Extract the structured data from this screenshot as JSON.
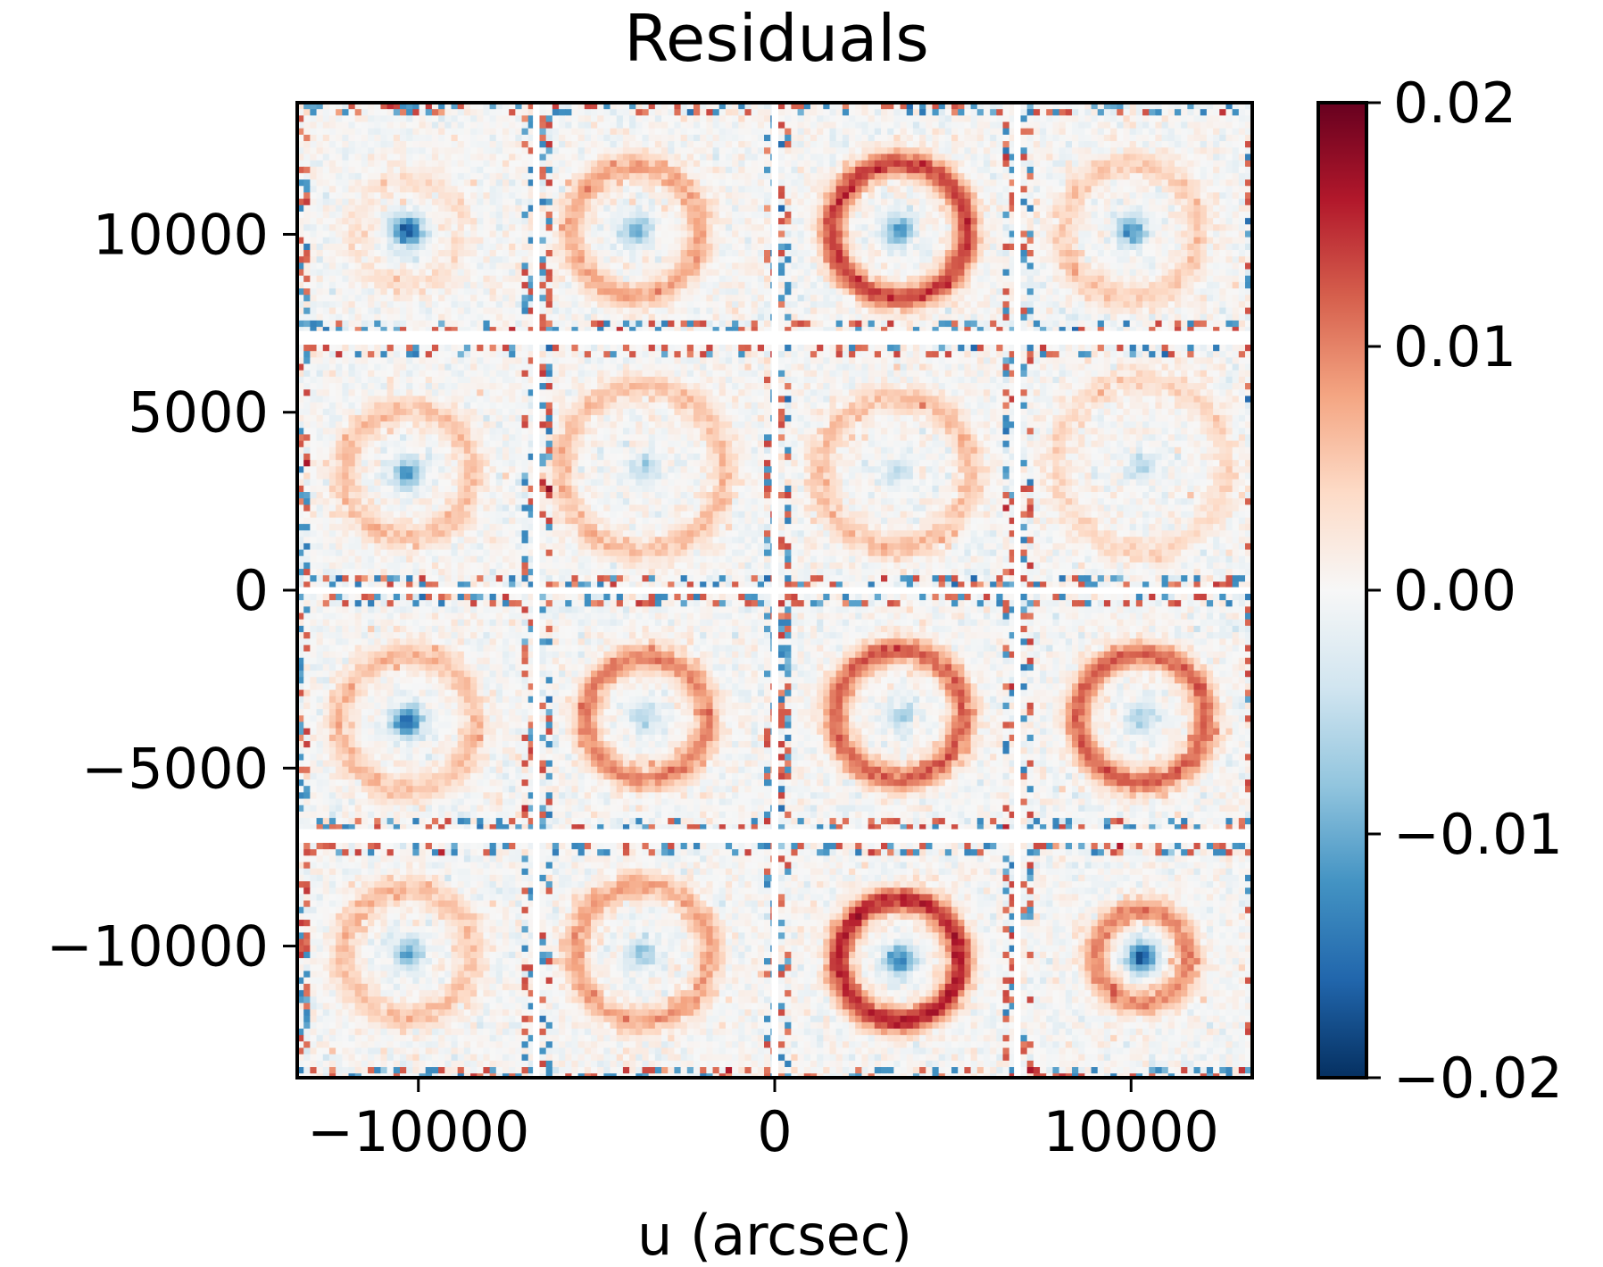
{
  "chart_data": {
    "type": "heatmap",
    "title": "Residuals",
    "xlabel": "u (arcsec)",
    "ylabel": "",
    "xlim": [
      -13400,
      13400
    ],
    "ylim": [
      -13700,
      13700
    ],
    "x_ticks": [
      {
        "value": -10000,
        "label": "−10000"
      },
      {
        "value": 0,
        "label": "0"
      },
      {
        "value": 10000,
        "label": "10000"
      }
    ],
    "y_ticks": [
      {
        "value": 10000,
        "label": "10000"
      },
      {
        "value": 5000,
        "label": "5000"
      },
      {
        "value": 0,
        "label": "0"
      },
      {
        "value": -5000,
        "label": "−5000"
      },
      {
        "value": -10000,
        "label": "−10000"
      }
    ],
    "colorbar": {
      "cmap": "RdBu_r",
      "range": [
        -0.02,
        0.02
      ],
      "ticks": [
        {
          "value": 0.02,
          "label": "0.02"
        },
        {
          "value": 0.01,
          "label": "0.01"
        },
        {
          "value": 0.0,
          "label": "0.00"
        },
        {
          "value": -0.01,
          "label": "−0.01"
        },
        {
          "value": -0.02,
          "label": "−0.02"
        }
      ],
      "stops": [
        "#053061",
        "#2166ac",
        "#4393c3",
        "#92c5de",
        "#d1e5f0",
        "#f7f7f7",
        "#fddbc7",
        "#f4a582",
        "#d6604d",
        "#b2182b",
        "#67001f"
      ]
    },
    "grid": false,
    "panels": {
      "columns_u": [
        [
          -13400,
          -6800
        ],
        [
          -6600,
          -100
        ],
        [
          100,
          6700
        ],
        [
          6900,
          13400
        ]
      ],
      "rows_v": [
        [
          7300,
          13700
        ],
        [
          100,
          6900
        ],
        [
          -6700,
          -100
        ],
        [
          -13700,
          -7100
        ]
      ],
      "ring_centers": [
        {
          "u": -10300,
          "v": 10100,
          "radius": 1500,
          "amp": 0.003,
          "center": -0.018
        },
        {
          "u": -3900,
          "v": 10100,
          "radius": 1800,
          "amp": 0.008,
          "center": -0.01
        },
        {
          "u": 3500,
          "v": 10100,
          "radius": 1900,
          "amp": 0.014,
          "center": -0.012
        },
        {
          "u": 10000,
          "v": 10100,
          "radius": 1900,
          "amp": 0.005,
          "center": -0.012
        },
        {
          "u": -10300,
          "v": 3300,
          "radius": 1800,
          "amp": 0.006,
          "center": -0.012
        },
        {
          "u": -3700,
          "v": 3400,
          "radius": 2300,
          "amp": 0.006,
          "center": -0.006
        },
        {
          "u": 3400,
          "v": 3300,
          "radius": 2100,
          "amp": 0.006,
          "center": -0.005
        },
        {
          "u": 10300,
          "v": 3500,
          "radius": 2400,
          "amp": 0.004,
          "center": -0.005
        },
        {
          "u": -10300,
          "v": -3700,
          "radius": 1900,
          "amp": 0.006,
          "center": -0.016
        },
        {
          "u": -3600,
          "v": -3600,
          "radius": 1700,
          "amp": 0.01,
          "center": -0.006
        },
        {
          "u": 3500,
          "v": -3500,
          "radius": 1800,
          "amp": 0.012,
          "center": -0.006
        },
        {
          "u": 10300,
          "v": -3600,
          "radius": 1800,
          "amp": 0.012,
          "center": -0.006
        },
        {
          "u": -10300,
          "v": -10200,
          "radius": 1800,
          "amp": 0.006,
          "center": -0.01
        },
        {
          "u": -3700,
          "v": -10200,
          "radius": 1900,
          "amp": 0.008,
          "center": -0.008
        },
        {
          "u": 3500,
          "v": -10400,
          "radius": 1700,
          "amp": 0.016,
          "center": -0.014
        },
        {
          "u": 10300,
          "v": -10300,
          "radius": 1300,
          "amp": 0.01,
          "center": -0.018
        }
      ]
    }
  }
}
